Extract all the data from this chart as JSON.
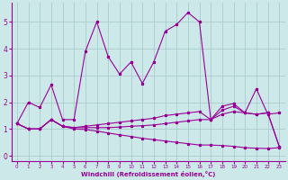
{
  "background_color": "#cce8e8",
  "grid_color": "#aacccc",
  "line_color": "#990099",
  "x_ticks": [
    0,
    1,
    2,
    3,
    4,
    5,
    6,
    7,
    8,
    9,
    10,
    11,
    12,
    13,
    14,
    15,
    16,
    17,
    18,
    19,
    20,
    21,
    22,
    23
  ],
  "y_ticks": [
    0,
    1,
    2,
    3,
    4,
    5
  ],
  "xlim": [
    -0.5,
    23.5
  ],
  "ylim": [
    -0.2,
    5.7
  ],
  "xlabel": "Windchill (Refroidissement éolien,°C)",
  "line1_x": [
    0,
    1,
    2,
    3,
    4,
    5,
    6,
    7,
    8,
    9,
    10,
    11,
    12,
    13,
    14,
    15,
    16,
    17,
    18,
    19,
    20,
    21,
    22,
    23
  ],
  "line1_y": [
    1.2,
    2.0,
    1.8,
    2.65,
    1.35,
    1.35,
    3.9,
    5.0,
    3.7,
    3.05,
    3.5,
    2.7,
    3.5,
    4.65,
    4.9,
    5.35,
    5.0,
    1.35,
    1.85,
    1.95,
    1.6,
    2.5,
    1.55,
    1.6
  ],
  "line2_x": [
    0,
    1,
    2,
    3,
    4,
    5,
    6,
    7,
    8,
    9,
    10,
    11,
    12,
    13,
    14,
    15,
    16,
    17,
    18,
    19,
    20,
    21,
    22,
    23
  ],
  "line2_y": [
    1.2,
    1.0,
    1.0,
    1.35,
    1.1,
    1.05,
    1.1,
    1.15,
    1.2,
    1.25,
    1.3,
    1.35,
    1.4,
    1.5,
    1.55,
    1.6,
    1.65,
    1.35,
    1.7,
    1.85,
    1.6,
    1.55,
    1.6,
    0.35
  ],
  "line3_x": [
    0,
    1,
    2,
    3,
    4,
    5,
    6,
    7,
    8,
    9,
    10,
    11,
    12,
    13,
    14,
    15,
    16,
    17,
    18,
    19,
    20,
    21,
    22,
    23
  ],
  "line3_y": [
    1.2,
    1.0,
    1.0,
    1.35,
    1.1,
    1.05,
    1.05,
    1.05,
    1.05,
    1.07,
    1.1,
    1.12,
    1.15,
    1.2,
    1.25,
    1.3,
    1.35,
    1.35,
    1.55,
    1.65,
    1.6,
    1.55,
    1.6,
    0.35
  ],
  "line4_x": [
    0,
    1,
    2,
    3,
    4,
    5,
    6,
    7,
    8,
    9,
    10,
    11,
    12,
    13,
    14,
    15,
    16,
    17,
    18,
    19,
    20,
    21,
    22,
    23
  ],
  "line4_y": [
    1.2,
    1.0,
    1.0,
    1.35,
    1.1,
    1.0,
    0.98,
    0.92,
    0.85,
    0.78,
    0.72,
    0.65,
    0.6,
    0.55,
    0.5,
    0.45,
    0.4,
    0.4,
    0.38,
    0.35,
    0.3,
    0.28,
    0.27,
    0.3
  ],
  "figsize": [
    3.2,
    2.0
  ],
  "dpi": 100
}
